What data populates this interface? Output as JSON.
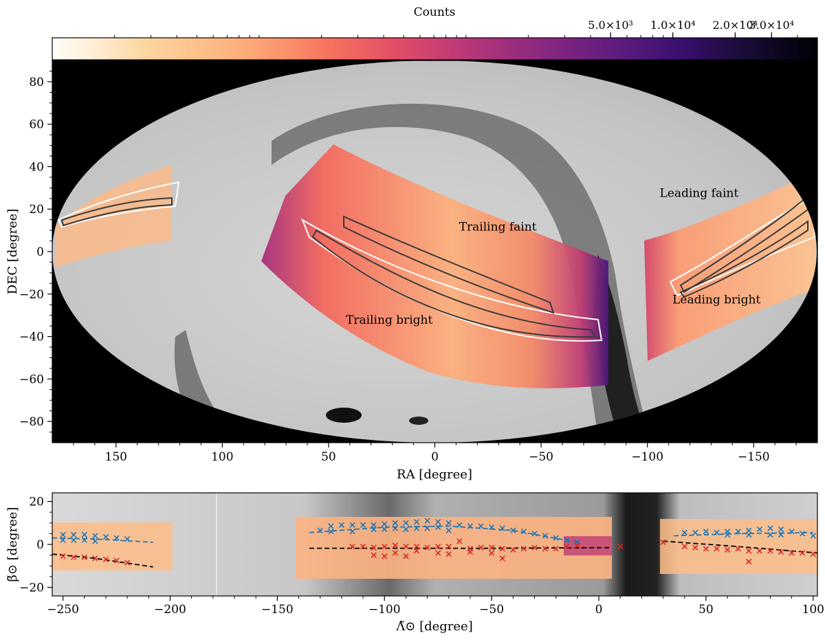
{
  "colorbar": {
    "label": "Counts",
    "ticks": [
      {
        "label": "5.0×10³",
        "value": 5000
      },
      {
        "label": "1.0×10⁴",
        "value": 10000
      },
      {
        "label": "2.0×10⁴",
        "value": 20000
      },
      {
        "label": "3.0×10⁴",
        "value": 30000
      }
    ],
    "range": [
      10,
      50000
    ],
    "scale": "log",
    "colormap": "magma_r"
  },
  "colors": {
    "background_sky": "#cfcfcf",
    "outside_map": "#000000",
    "contour_dark": "#3a3a3a",
    "contour_light": "#ffffff",
    "faint_markers": "#1f77b4",
    "bright_markers": "#d62728",
    "fit_line": "#000000"
  },
  "chart_data": [
    {
      "type": "heatmap",
      "projection": "mollweide",
      "xlabel": "RA [degree]",
      "ylabel": "DEC [degree]",
      "xlim": [
        180,
        -180
      ],
      "ylim": [
        -90,
        90
      ],
      "xticks": [
        150,
        100,
        50,
        0,
        -50,
        -100,
        -150
      ],
      "xtick_labels": [
        "150",
        "100",
        "50",
        "0",
        "−50",
        "−100",
        "−150"
      ],
      "yticks": [
        80,
        60,
        40,
        20,
        0,
        -20,
        -40,
        -60,
        -80
      ],
      "ytick_labels": [
        "80",
        "60",
        "40",
        "20",
        "0",
        "−20",
        "−40",
        "−60",
        "−80"
      ],
      "annotations": [
        {
          "text": "Trailing faint",
          "ra": -30,
          "dec": 8
        },
        {
          "text": "Trailing bright",
          "ra": 23,
          "dec": -28
        },
        {
          "text": "Leading faint",
          "ra": -130,
          "dec": 21
        },
        {
          "text": "Leading bright",
          "ra": -138,
          "dec": -20
        }
      ],
      "streams": [
        {
          "arm": "Trailing faint",
          "track": [
            [
              55,
              15
            ],
            [
              40,
              8
            ],
            [
              20,
              0
            ],
            [
              0,
              -10
            ],
            [
              -20,
              -20
            ],
            [
              -40,
              -30
            ],
            [
              -60,
              -38
            ],
            [
              -72,
              -36
            ]
          ]
        },
        {
          "arm": "Trailing bright",
          "track": [
            [
              50,
              8
            ],
            [
              35,
              -2
            ],
            [
              15,
              -14
            ],
            [
              -5,
              -25
            ],
            [
              -25,
              -33
            ],
            [
              -50,
              -40
            ],
            [
              -72,
              -38
            ]
          ]
        },
        {
          "arm": "Leading faint",
          "track": [
            [
              -112,
              -15
            ],
            [
              -125,
              -5
            ],
            [
              -140,
              5
            ],
            [
              -155,
              15
            ],
            [
              -172,
              26
            ]
          ]
        },
        {
          "arm": "Leading bright",
          "track": [
            [
              -112,
              -18
            ],
            [
              -125,
              -12
            ],
            [
              -140,
              -5
            ],
            [
              -155,
              3
            ],
            [
              -175,
              15
            ]
          ]
        }
      ]
    },
    {
      "type": "scatter",
      "xlabel": "Λ̃⊙ [degree]",
      "ylabel": "β̃⊙ [degree]",
      "xlim": [
        -255,
        102
      ],
      "ylim": [
        -24,
        24
      ],
      "xticks": [
        -250,
        -200,
        -150,
        -100,
        -50,
        0,
        50,
        100
      ],
      "xtick_labels": [
        "−250",
        "−200",
        "−150",
        "−100",
        "−50",
        "0",
        "50",
        "100"
      ],
      "yticks": [
        20,
        0,
        -20
      ],
      "ytick_labels": [
        "20",
        "0",
        "−20"
      ],
      "series": [
        {
          "marker": "x",
          "color": "#1f77b4",
          "points": [
            [
              -250,
              4.5
            ],
            [
              -245,
              4.5
            ],
            [
              -240,
              4.5
            ],
            [
              -235,
              4
            ],
            [
              -230,
              3.5
            ],
            [
              -225,
              3
            ],
            [
              -220,
              2.5
            ],
            [
              -250,
              2
            ],
            [
              -245,
              2
            ],
            [
              -240,
              2
            ],
            [
              -235,
              1.5
            ],
            [
              -130,
              6.5
            ],
            [
              -125,
              8.5
            ],
            [
              -120,
              9
            ],
            [
              -115,
              9
            ],
            [
              -110,
              9
            ],
            [
              -105,
              9
            ],
            [
              -100,
              9.5
            ],
            [
              -95,
              10
            ],
            [
              -90,
              10
            ],
            [
              -85,
              10.5
            ],
            [
              -80,
              11
            ],
            [
              -75,
              10.5
            ],
            [
              -70,
              10
            ],
            [
              -65,
              9
            ],
            [
              -60,
              8.5
            ],
            [
              -55,
              8.5
            ],
            [
              -50,
              8
            ],
            [
              -45,
              7.5
            ],
            [
              -40,
              6.5
            ],
            [
              -35,
              6
            ],
            [
              -30,
              5
            ],
            [
              -25,
              4
            ],
            [
              -20,
              3
            ],
            [
              -15,
              2
            ],
            [
              -10,
              1
            ],
            [
              -125,
              6
            ],
            [
              -115,
              6
            ],
            [
              -105,
              7
            ],
            [
              -95,
              7.5
            ],
            [
              -85,
              7.5
            ],
            [
              -75,
              8
            ],
            [
              -70,
              6.5
            ],
            [
              -90,
              7
            ],
            [
              -80,
              7.5
            ],
            [
              -100,
              7
            ],
            [
              40,
              5.5
            ],
            [
              45,
              5.5
            ],
            [
              50,
              6
            ],
            [
              55,
              5.5
            ],
            [
              60,
              6
            ],
            [
              65,
              6
            ],
            [
              70,
              6.5
            ],
            [
              75,
              7
            ],
            [
              80,
              7.5
            ],
            [
              85,
              7
            ],
            [
              90,
              6
            ],
            [
              95,
              5
            ],
            [
              100,
              4
            ],
            [
              60,
              4.5
            ],
            [
              70,
              4.5
            ],
            [
              80,
              4.5
            ],
            [
              85,
              4.5
            ]
          ]
        },
        {
          "marker": "x",
          "color": "#d62728",
          "points": [
            [
              -250,
              -5.5
            ],
            [
              -245,
              -6
            ],
            [
              -240,
              -6
            ],
            [
              -235,
              -6.5
            ],
            [
              -230,
              -7
            ],
            [
              -225,
              -7.5
            ],
            [
              -220,
              -8.5
            ],
            [
              -115,
              -1
            ],
            [
              -110,
              -1
            ],
            [
              -105,
              -1.5
            ],
            [
              -100,
              -1
            ],
            [
              -95,
              -0.5
            ],
            [
              -90,
              -1
            ],
            [
              -85,
              -1
            ],
            [
              -80,
              -1.5
            ],
            [
              -75,
              -1
            ],
            [
              -70,
              -1
            ],
            [
              -65,
              1.5
            ],
            [
              -60,
              -2
            ],
            [
              -55,
              -1.5
            ],
            [
              -50,
              -1.5
            ],
            [
              -45,
              -2
            ],
            [
              -40,
              -2.5
            ],
            [
              -35,
              -2
            ],
            [
              -30,
              -1.5
            ],
            [
              -25,
              -2
            ],
            [
              -20,
              -2
            ],
            [
              -15,
              -1
            ],
            [
              -10,
              -0.5
            ],
            [
              -105,
              -5
            ],
            [
              -100,
              -5.5
            ],
            [
              -95,
              -4
            ],
            [
              -90,
              -5.5
            ],
            [
              -85,
              -3
            ],
            [
              -75,
              -4
            ],
            [
              -70,
              -4.5
            ],
            [
              -60,
              -3.5
            ],
            [
              -50,
              -4
            ],
            [
              -45,
              -6.5
            ],
            [
              10,
              -1
            ],
            [
              30,
              1
            ],
            [
              40,
              -1
            ],
            [
              45,
              -1.5
            ],
            [
              50,
              -2
            ],
            [
              55,
              -2
            ],
            [
              60,
              -2.5
            ],
            [
              65,
              -2
            ],
            [
              70,
              -3
            ],
            [
              75,
              -3
            ],
            [
              80,
              -3
            ],
            [
              85,
              -3.5
            ],
            [
              90,
              -4
            ],
            [
              95,
              -4
            ],
            [
              100,
              -4.5
            ],
            [
              70,
              -8
            ]
          ]
        }
      ],
      "fit_lines": [
        {
          "color": "#1f77b4",
          "points": [
            [
              -255,
              3
            ],
            [
              -235,
              2.5
            ],
            [
              -208,
              1
            ]
          ]
        },
        {
          "color": "#1f77b4",
          "points": [
            [
              -135,
              5.5
            ],
            [
              -100,
              8
            ],
            [
              -70,
              8.5
            ],
            [
              -40,
              6.5
            ],
            [
              -10,
              1
            ]
          ]
        },
        {
          "color": "#1f77b4",
          "points": [
            [
              35,
              4
            ],
            [
              65,
              5
            ],
            [
              100,
              5.5
            ]
          ]
        },
        {
          "color": "#000000",
          "points": [
            [
              -255,
              -4.5
            ],
            [
              -235,
              -6.5
            ],
            [
              -208,
              -10.5
            ]
          ]
        },
        {
          "color": "#000000",
          "points": [
            [
              -135,
              -1.8
            ],
            [
              -50,
              -1.8
            ],
            [
              5,
              -1.5
            ]
          ]
        },
        {
          "color": "#000000",
          "points": [
            [
              30,
              1.5
            ],
            [
              65,
              -1
            ],
            [
              102,
              -4
            ]
          ]
        }
      ]
    }
  ]
}
